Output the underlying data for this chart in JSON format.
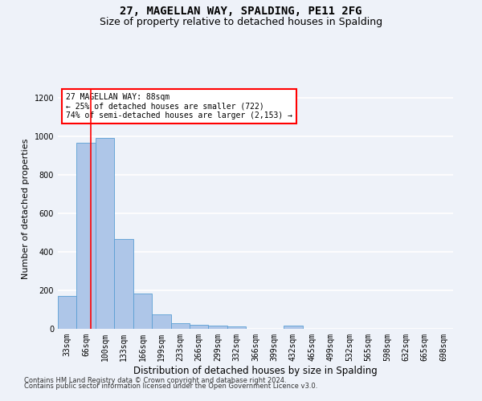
{
  "title": "27, MAGELLAN WAY, SPALDING, PE11 2FG",
  "subtitle": "Size of property relative to detached houses in Spalding",
  "xlabel": "Distribution of detached houses by size in Spalding",
  "ylabel": "Number of detached properties",
  "footnote1": "Contains HM Land Registry data © Crown copyright and database right 2024.",
  "footnote2": "Contains public sector information licensed under the Open Government Licence v3.0.",
  "annotation_line1": "27 MAGELLAN WAY: 88sqm",
  "annotation_line2": "← 25% of detached houses are smaller (722)",
  "annotation_line3": "74% of semi-detached houses are larger (2,153) →",
  "bar_color": "#aec6e8",
  "bar_edge_color": "#5a9fd4",
  "categories": [
    "33sqm",
    "66sqm",
    "100sqm",
    "133sqm",
    "166sqm",
    "199sqm",
    "233sqm",
    "266sqm",
    "299sqm",
    "332sqm",
    "366sqm",
    "399sqm",
    "432sqm",
    "465sqm",
    "499sqm",
    "532sqm",
    "565sqm",
    "598sqm",
    "632sqm",
    "665sqm",
    "698sqm"
  ],
  "values": [
    170,
    965,
    990,
    465,
    185,
    75,
    28,
    20,
    15,
    12,
    0,
    0,
    15,
    0,
    0,
    0,
    0,
    0,
    0,
    0,
    0
  ],
  "ylim": [
    0,
    1250
  ],
  "yticks": [
    0,
    200,
    400,
    600,
    800,
    1000,
    1200
  ],
  "red_line_x": 1.27,
  "background_color": "#eef2f9",
  "grid_color": "#ffffff",
  "title_fontsize": 10,
  "subtitle_fontsize": 9,
  "ylabel_fontsize": 8,
  "xlabel_fontsize": 8.5,
  "tick_fontsize": 7,
  "annot_fontsize": 7
}
